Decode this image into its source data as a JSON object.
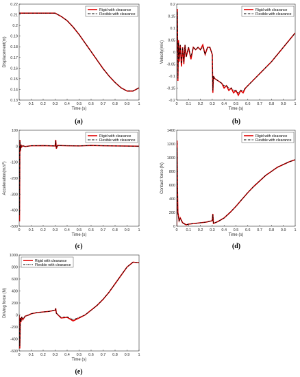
{
  "colors": {
    "rigid": "#e00000",
    "flexible": "#000000",
    "axis": "#262626"
  },
  "chart_data": [
    {
      "type": "line",
      "panel": "(a)",
      "xlabel": "Time (s)",
      "ylabel": "Displacement(m)",
      "xlim": [
        0,
        1
      ],
      "ylim": [
        0.13,
        0.22
      ],
      "xticks": [
        0,
        0.1,
        0.2,
        0.3,
        0.4,
        0.5,
        0.6,
        0.7,
        0.8,
        0.9,
        1
      ],
      "yticks": [
        0.13,
        0.14,
        0.15,
        0.16,
        0.17,
        0.18,
        0.19,
        0.2,
        0.21,
        0.22
      ],
      "xtick_labels": [
        "0",
        "0.1",
        "0.2",
        "0.3",
        "0.4",
        "0.5",
        "0.6",
        "0.7",
        "0.8",
        "0.9",
        "1"
      ],
      "ytick_labels": [
        "0.13",
        "0.14",
        "0.15",
        "0.16",
        "0.17",
        "0.18",
        "0.19",
        "0.2",
        "0.21",
        "0.22"
      ],
      "legend_position": "top-right",
      "series": [
        {
          "name": "Rigid with clearance",
          "style": "solid",
          "x": [
            0,
            0.05,
            0.1,
            0.15,
            0.2,
            0.25,
            0.3,
            0.35,
            0.4,
            0.45,
            0.5,
            0.55,
            0.6,
            0.65,
            0.7,
            0.75,
            0.8,
            0.85,
            0.9,
            0.95,
            1
          ],
          "y": [
            0.2115,
            0.2115,
            0.2115,
            0.2115,
            0.2115,
            0.2115,
            0.2115,
            0.2085,
            0.2045,
            0.1985,
            0.1915,
            0.1835,
            0.1755,
            0.1675,
            0.1595,
            0.1525,
            0.1465,
            0.1415,
            0.1385,
            0.1385,
            0.1415
          ]
        },
        {
          "name": "Flexible with clearance",
          "style": "dashdot",
          "x": [
            0,
            0.05,
            0.1,
            0.15,
            0.2,
            0.25,
            0.3,
            0.35,
            0.4,
            0.45,
            0.5,
            0.55,
            0.6,
            0.65,
            0.7,
            0.75,
            0.8,
            0.85,
            0.9,
            0.95,
            1
          ],
          "y": [
            0.2115,
            0.2115,
            0.2115,
            0.2115,
            0.2115,
            0.2115,
            0.2115,
            0.2085,
            0.2045,
            0.1985,
            0.1915,
            0.1835,
            0.1755,
            0.1675,
            0.1595,
            0.1525,
            0.1465,
            0.1415,
            0.1385,
            0.1385,
            0.1415
          ]
        }
      ]
    },
    {
      "type": "line",
      "panel": "(b)",
      "xlabel": "Time (s)",
      "ylabel": "Velocity(m/s)",
      "xlim": [
        0,
        1
      ],
      "ylim": [
        -0.2,
        0.2
      ],
      "xticks": [
        0,
        0.1,
        0.2,
        0.3,
        0.4,
        0.5,
        0.6,
        0.7,
        0.8,
        0.9,
        1
      ],
      "yticks": [
        -0.2,
        -0.15,
        -0.1,
        -0.05,
        0,
        0.05,
        0.1,
        0.15,
        0.2
      ],
      "xtick_labels": [
        "0",
        "0.1",
        "0.2",
        "0.3",
        "0.4",
        "0.5",
        "0.6",
        "0.7",
        "0.8",
        "0.9",
        "1"
      ],
      "ytick_labels": [
        "-0.2",
        "-0.15",
        "-0.1",
        "-0.05",
        "0",
        "0.05",
        "0.1",
        "0.15",
        "0.2"
      ],
      "legend_position": "top-right",
      "series": [
        {
          "name": "Rigid with clearance",
          "style": "solid",
          "x": [
            0,
            0.005,
            0.01,
            0.015,
            0.02,
            0.03,
            0.04,
            0.05,
            0.06,
            0.07,
            0.08,
            0.1,
            0.12,
            0.14,
            0.16,
            0.18,
            0.2,
            0.22,
            0.24,
            0.26,
            0.28,
            0.3,
            0.305,
            0.31,
            0.32,
            0.35,
            0.38,
            0.4,
            0.42,
            0.44,
            0.46,
            0.48,
            0.5,
            0.52,
            0.54,
            0.56,
            0.58,
            0.6,
            0.62,
            0.64,
            0.66,
            0.7,
            0.75,
            0.8,
            0.85,
            0.9,
            0.95,
            1
          ],
          "y": [
            0,
            0.18,
            -0.12,
            0.05,
            -0.04,
            0.03,
            -0.06,
            0.02,
            -0.05,
            0.03,
            -0.02,
            0.02,
            -0.03,
            0.02,
            0.01,
            0.02,
            0.01,
            0.03,
            -0.01,
            0.02,
            0.02,
            -0.01,
            -0.17,
            -0.1,
            -0.11,
            -0.12,
            -0.13,
            -0.15,
            -0.14,
            -0.16,
            -0.15,
            -0.17,
            -0.16,
            -0.18,
            -0.16,
            -0.17,
            -0.15,
            -0.14,
            -0.13,
            -0.12,
            -0.11,
            -0.09,
            -0.065,
            -0.04,
            -0.01,
            0.02,
            0.05,
            0.08
          ]
        },
        {
          "name": "Flexible with clearance",
          "style": "dashdot",
          "x": [
            0,
            0.005,
            0.01,
            0.015,
            0.02,
            0.03,
            0.04,
            0.05,
            0.06,
            0.07,
            0.08,
            0.1,
            0.12,
            0.14,
            0.16,
            0.18,
            0.2,
            0.22,
            0.24,
            0.26,
            0.28,
            0.3,
            0.305,
            0.31,
            0.32,
            0.35,
            0.38,
            0.4,
            0.42,
            0.44,
            0.46,
            0.48,
            0.5,
            0.52,
            0.54,
            0.56,
            0.58,
            0.6,
            0.62,
            0.64,
            0.66,
            0.7,
            0.75,
            0.8,
            0.85,
            0.9,
            0.95,
            1
          ],
          "y": [
            0,
            0.17,
            -0.11,
            0.04,
            -0.03,
            0.03,
            -0.05,
            0.02,
            -0.04,
            0.03,
            -0.02,
            0.02,
            -0.02,
            0.02,
            0.01,
            0.02,
            0.01,
            0.02,
            -0.01,
            0.02,
            0.02,
            -0.01,
            -0.16,
            -0.1,
            -0.11,
            -0.12,
            -0.13,
            -0.14,
            -0.14,
            -0.15,
            -0.15,
            -0.16,
            -0.16,
            -0.17,
            -0.16,
            -0.16,
            -0.15,
            -0.14,
            -0.13,
            -0.12,
            -0.11,
            -0.09,
            -0.065,
            -0.04,
            -0.01,
            0.02,
            0.05,
            0.08
          ]
        }
      ]
    },
    {
      "type": "line",
      "panel": "(c)",
      "xlabel": "Time (s)",
      "ylabel": "Acceleration(m/s^2)",
      "xlim": [
        0,
        1
      ],
      "ylim": [
        -500,
        100
      ],
      "xticks": [
        0,
        0.1,
        0.2,
        0.3,
        0.4,
        0.5,
        0.6,
        0.7,
        0.8,
        0.9,
        1
      ],
      "yticks": [
        -500,
        -400,
        -300,
        -200,
        -100,
        0,
        100
      ],
      "xtick_labels": [
        "0",
        "0.1",
        "0.2",
        "0.3",
        "0.4",
        "0.5",
        "0.6",
        "0.7",
        "0.8",
        "0.9",
        "1"
      ],
      "ytick_labels": [
        "-500",
        "-400",
        "-300",
        "-200",
        "-100",
        "0",
        "100"
      ],
      "legend_position": "top-right",
      "series": [
        {
          "name": "Rigid with clearance",
          "style": "solid",
          "x": [
            0,
            0.003,
            0.006,
            0.01,
            0.015,
            0.02,
            0.03,
            0.05,
            0.1,
            0.2,
            0.3,
            0.305,
            0.31,
            0.32,
            0.4,
            0.5,
            0.6,
            0.7,
            0.8,
            0.9,
            1
          ],
          "y": [
            0,
            -470,
            40,
            -30,
            10,
            -5,
            3,
            -2,
            3,
            4,
            2,
            40,
            -15,
            5,
            3,
            2,
            5,
            3,
            2,
            1,
            0
          ]
        },
        {
          "name": "Flexible with clearance",
          "style": "dashdot",
          "x": [
            0,
            0.003,
            0.006,
            0.01,
            0.015,
            0.02,
            0.03,
            0.05,
            0.1,
            0.2,
            0.3,
            0.305,
            0.31,
            0.32,
            0.4,
            0.5,
            0.6,
            0.7,
            0.8,
            0.9,
            1
          ],
          "y": [
            0,
            -430,
            35,
            -25,
            8,
            -4,
            3,
            -2,
            3,
            4,
            2,
            35,
            -12,
            5,
            3,
            2,
            5,
            3,
            2,
            1,
            0
          ]
        }
      ]
    },
    {
      "type": "line",
      "panel": "(d)",
      "xlabel": "Time (s)",
      "ylabel": "Contact force (N)",
      "xlim": [
        0,
        1
      ],
      "ylim": [
        0,
        1400
      ],
      "xticks": [
        0,
        0.1,
        0.2,
        0.3,
        0.4,
        0.5,
        0.6,
        0.7,
        0.8,
        0.9,
        1
      ],
      "yticks": [
        0,
        200,
        400,
        600,
        800,
        1000,
        1200,
        1400
      ],
      "xtick_labels": [
        "0",
        "0.1",
        "0.2",
        "0.3",
        "0.4",
        "0.5",
        "0.6",
        "0.7",
        "0.8",
        "0.9",
        "1"
      ],
      "ytick_labels": [
        "0",
        "200",
        "400",
        "600",
        "800",
        "1000",
        "1200",
        "1400"
      ],
      "legend_position": "top-right",
      "series": [
        {
          "name": "Rigid with clearance",
          "style": "solid",
          "x": [
            0,
            0.003,
            0.006,
            0.01,
            0.015,
            0.02,
            0.03,
            0.05,
            0.08,
            0.1,
            0.15,
            0.2,
            0.25,
            0.3,
            0.305,
            0.31,
            0.35,
            0.4,
            0.45,
            0.5,
            0.55,
            0.6,
            0.65,
            0.7,
            0.75,
            0.8,
            0.85,
            0.9,
            0.95,
            1
          ],
          "y": [
            0,
            1250,
            600,
            200,
            150,
            80,
            120,
            50,
            20,
            30,
            40,
            50,
            60,
            80,
            180,
            40,
            70,
            120,
            200,
            290,
            390,
            490,
            580,
            660,
            740,
            800,
            860,
            900,
            940,
            970
          ]
        },
        {
          "name": "Flexible with clearance",
          "style": "dashdot",
          "x": [
            0,
            0.003,
            0.006,
            0.01,
            0.015,
            0.02,
            0.03,
            0.05,
            0.08,
            0.1,
            0.15,
            0.2,
            0.25,
            0.3,
            0.305,
            0.31,
            0.35,
            0.4,
            0.45,
            0.5,
            0.55,
            0.6,
            0.65,
            0.7,
            0.75,
            0.8,
            0.85,
            0.9,
            0.95,
            1
          ],
          "y": [
            0,
            1150,
            560,
            180,
            140,
            70,
            110,
            45,
            20,
            30,
            40,
            50,
            60,
            80,
            170,
            40,
            70,
            120,
            200,
            290,
            390,
            490,
            580,
            660,
            740,
            800,
            860,
            900,
            940,
            970
          ]
        }
      ]
    },
    {
      "type": "line",
      "panel": "(e)",
      "xlabel": "Time (s)",
      "ylabel": "Driving force (N)",
      "xlim": [
        0,
        1
      ],
      "ylim": [
        -600,
        1000
      ],
      "xticks": [
        0,
        0.1,
        0.2,
        0.3,
        0.4,
        0.5,
        0.6,
        0.7,
        0.8,
        0.9,
        1
      ],
      "yticks": [
        -600,
        -400,
        -200,
        0,
        200,
        400,
        600,
        800,
        1000
      ],
      "xtick_labels": [
        "0",
        "0.1",
        "0.2",
        "0.3",
        "0.4",
        "0.5",
        "0.6",
        "0.7",
        "0.8",
        "0.9",
        "1"
      ],
      "ytick_labels": [
        "-600",
        "-400",
        "-200",
        "0",
        "200",
        "400",
        "600",
        "800",
        "1000"
      ],
      "legend_position": "top-left",
      "series": [
        {
          "name": "Rigid with clearance",
          "style": "solid",
          "x": [
            0,
            0.005,
            0.01,
            0.015,
            0.02,
            0.03,
            0.05,
            0.08,
            0.1,
            0.15,
            0.2,
            0.25,
            0.3,
            0.305,
            0.31,
            0.35,
            0.4,
            0.45,
            0.5,
            0.55,
            0.6,
            0.65,
            0.7,
            0.75,
            0.8,
            0.85,
            0.9,
            0.95,
            1
          ],
          "y": [
            0,
            -560,
            -50,
            -120,
            -30,
            -80,
            -20,
            0,
            20,
            40,
            50,
            60,
            80,
            110,
            30,
            -50,
            -40,
            -100,
            -50,
            0,
            80,
            160,
            260,
            380,
            520,
            660,
            800,
            880,
            870
          ]
        },
        {
          "name": "Flexible with clearance",
          "style": "dashdot",
          "x": [
            0,
            0.005,
            0.01,
            0.015,
            0.02,
            0.03,
            0.05,
            0.08,
            0.1,
            0.15,
            0.2,
            0.25,
            0.3,
            0.305,
            0.31,
            0.35,
            0.4,
            0.45,
            0.5,
            0.55,
            0.6,
            0.65,
            0.7,
            0.75,
            0.8,
            0.85,
            0.9,
            0.95,
            1
          ],
          "y": [
            0,
            -520,
            -50,
            -110,
            -30,
            -70,
            -20,
            0,
            20,
            40,
            50,
            60,
            80,
            100,
            30,
            -40,
            -30,
            -80,
            -40,
            0,
            80,
            160,
            260,
            380,
            520,
            660,
            800,
            880,
            870
          ]
        }
      ]
    }
  ]
}
